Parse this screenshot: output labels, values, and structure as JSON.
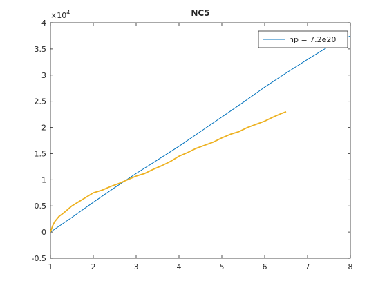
{
  "chart_data": {
    "type": "line",
    "title": "NC5",
    "y_exponent_base": "×10",
    "y_exponent_power": "4",
    "xlim": [
      1,
      8
    ],
    "xticks": [
      1,
      2,
      3,
      4,
      5,
      6,
      7,
      8
    ],
    "ylim": [
      -0.5,
      4
    ],
    "yticks": [
      -0.5,
      0,
      0.5,
      1,
      1.5,
      2,
      2.5,
      3,
      3.5,
      4
    ],
    "legend": "upper right",
    "series": [
      {
        "name": "np = 7.2e20",
        "color": "#0072BD",
        "x": [
          1,
          1.5,
          2,
          2.5,
          3,
          3.5,
          4,
          4.5,
          5,
          5.5,
          6,
          6.5,
          7,
          7.5,
          8
        ],
        "values": [
          0,
          0.28,
          0.57,
          0.85,
          1.12,
          1.38,
          1.64,
          1.92,
          2.2,
          2.48,
          2.77,
          3.04,
          3.3,
          3.55,
          3.75
        ]
      },
      {
        "color": "#EDB120",
        "x": [
          1,
          1.05,
          1.1,
          1.2,
          1.3,
          1.4,
          1.5,
          1.6,
          1.8,
          2,
          2.2,
          2.4,
          2.6,
          2.8,
          3,
          3.2,
          3.4,
          3.6,
          3.8,
          4,
          4.2,
          4.4,
          4.6,
          4.8,
          5,
          5.2,
          5.4,
          5.6,
          5.8,
          6,
          6.2,
          6.4,
          6.5
        ],
        "values": [
          0,
          0.12,
          0.2,
          0.3,
          0.36,
          0.43,
          0.5,
          0.55,
          0.65,
          0.75,
          0.8,
          0.87,
          0.93,
          1.0,
          1.07,
          1.12,
          1.2,
          1.27,
          1.35,
          1.45,
          1.52,
          1.6,
          1.66,
          1.72,
          1.8,
          1.87,
          1.92,
          2.0,
          2.06,
          2.12,
          2.2,
          2.27,
          2.3
        ]
      }
    ]
  }
}
